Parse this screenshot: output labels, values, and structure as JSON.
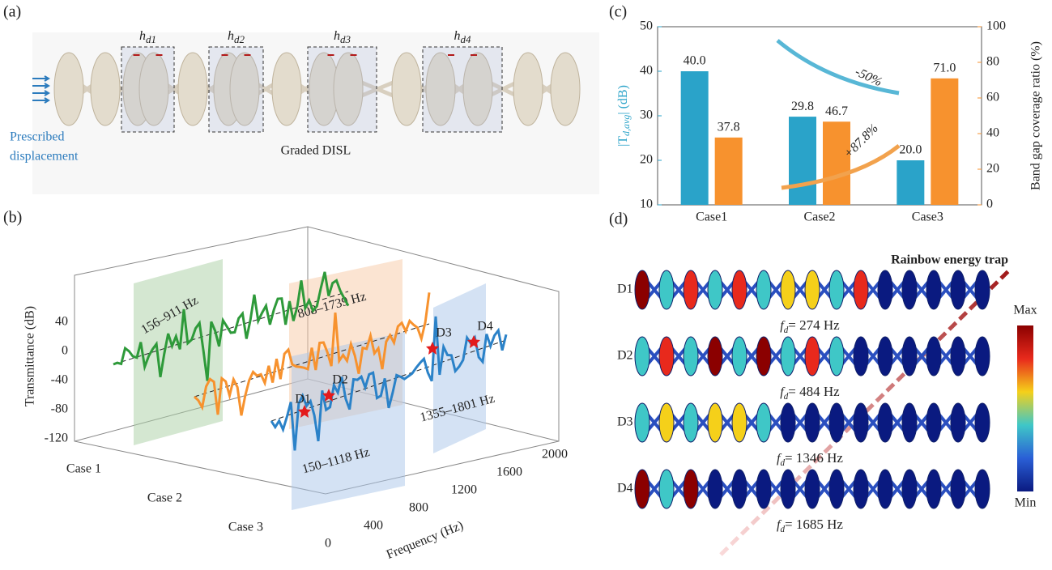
{
  "panel_a": {
    "label": "(a)",
    "gaps": [
      {
        "main": "h",
        "sub": "d1"
      },
      {
        "main": "h",
        "sub": "d2"
      },
      {
        "main": "h",
        "sub": "d3"
      },
      {
        "main": "h",
        "sub": "d4"
      }
    ],
    "load_label": [
      "Prescribed",
      "displacement"
    ],
    "caption": "Graded DISL"
  },
  "panel_b": {
    "label": "(b)",
    "z_label": "Transmittance (dB)",
    "z_ticks": [
      "40",
      "0",
      "-40",
      "-80",
      "-120"
    ],
    "cases": [
      "Case 1",
      "Case 2",
      "Case 3"
    ],
    "freq_ticks": [
      "0",
      "400",
      "800",
      "1200",
      "1600",
      "2000"
    ],
    "freq_label": "Frequency (Hz)",
    "bands": [
      "156–911 Hz",
      "808–1739 Hz",
      "150–1118 Hz",
      "1355–1801 Hz"
    ],
    "points": [
      "D1",
      "D2",
      "D3",
      "D4"
    ]
  },
  "chart_data": {
    "type": "bar",
    "label": "(c)",
    "categories": [
      "Case1",
      "Case2",
      "Case3"
    ],
    "ylabel": {
      "pre": "|T",
      "sub": "d,avg",
      "post": "| (dB)"
    },
    "y2label": "Band gap coverage ratio (%)",
    "ylim": [
      10,
      50
    ],
    "yticks": [
      10,
      20,
      30,
      40,
      50
    ],
    "y2lim": [
      0,
      100
    ],
    "y2ticks": [
      0,
      20,
      40,
      60,
      80,
      100
    ],
    "series": [
      {
        "color": "#2aa3c9",
        "values": [
          40.0,
          29.8,
          20.0
        ],
        "value_labels": [
          "40.0",
          "29.8",
          "20.0"
        ]
      },
      {
        "color": "#f7922e",
        "axis": "y2",
        "values": [
          37.8,
          46.7,
          71.0
        ],
        "value_labels": [
          "37.8",
          "46.7",
          "71.0"
        ]
      }
    ],
    "annotations": [
      "-50%",
      "+87.8%"
    ]
  },
  "panel_d": {
    "label": "(d)",
    "title": "Rainbow energy trap",
    "rows": [
      {
        "name": "D1",
        "freq": "= 274 Hz"
      },
      {
        "name": "D2",
        "freq": "= 484 Hz"
      },
      {
        "name": "D3",
        "freq": "= 1346 Hz"
      },
      {
        "name": "D4",
        "freq": "= 1685 Hz"
      }
    ],
    "freq_symbol": {
      "main": "f",
      "sub": "d"
    },
    "colorbar": [
      "Max",
      "Min"
    ]
  }
}
